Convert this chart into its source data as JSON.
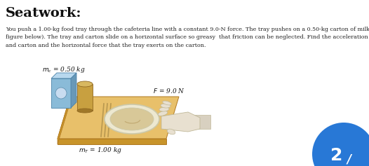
{
  "title": "Seatwork:",
  "body_text": "You push a 1.00-kg food tray through the cafeteria line with a constant 9.0-N force. The tray pushes on a 0.50-kg carton of milk (See\nfigure below). The tray and carton slide on a horizontal surface so greasy  that friction can be neglected. Find the acceleration of the tray\nand carton and the horizontal force that the tray exerts on the carton.",
  "label_mc": "$m_c$ = 0.50 kg",
  "label_mT": "$m_T$ = 1.00 kg",
  "label_F": "$F$ = 9.0 N",
  "tray_color": "#E8C06A",
  "tray_side_color": "#C8942A",
  "tray_edge_color": "#B07820",
  "milk_front_color": "#8ABBD8",
  "milk_top_color": "#B8D8EE",
  "milk_side_color": "#6898B8",
  "juice_body_color": "#C8A040",
  "juice_top_color": "#D8B860",
  "plate_color": "#EDE8D0",
  "plate_edge_color": "#CCC8A8",
  "plate_inner_color": "#D8C898",
  "cutlery_color": "#B89850",
  "hand_color": "#E8E0D0",
  "hand_edge_color": "#C0B898",
  "bg_color": "#FFFFFF",
  "circle_color": "#2878D6",
  "circle_text": "2",
  "title_fontsize": 14,
  "body_fontsize": 5.8,
  "label_fontsize": 6.5
}
